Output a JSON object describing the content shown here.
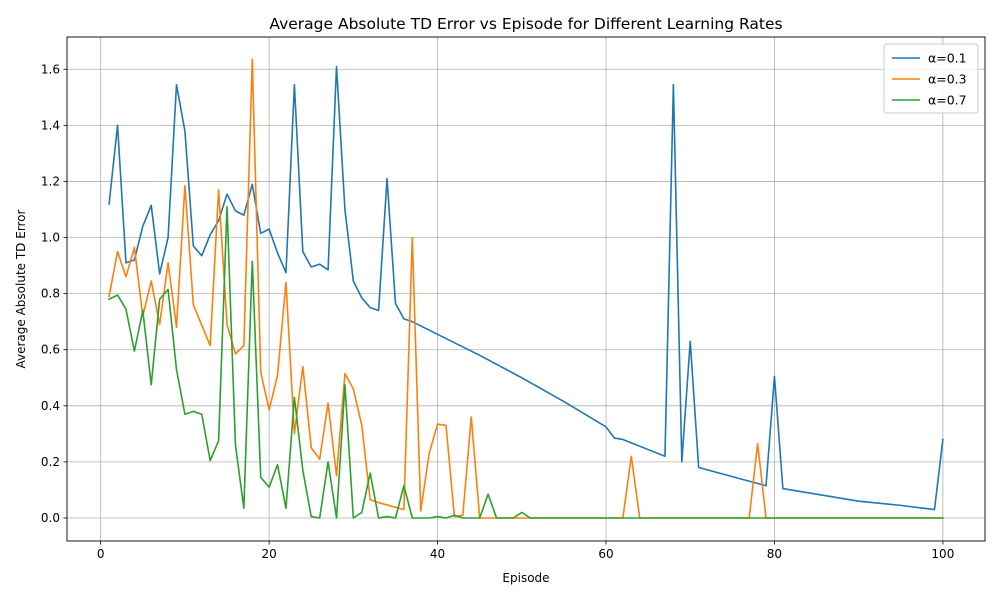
{
  "chart_data": {
    "type": "line",
    "title": "Average Absolute TD Error vs Episode for Different Learning Rates",
    "xlabel": "Episode",
    "ylabel": "Average Absolute TD Error",
    "xlim": [
      -4,
      105
    ],
    "ylim": [
      -0.082,
      1.715
    ],
    "xticks": [
      0,
      20,
      40,
      60,
      80,
      100
    ],
    "yticks": [
      0.0,
      0.2,
      0.4,
      0.6,
      0.8,
      1.0,
      1.2,
      1.4,
      1.6
    ],
    "grid": true,
    "legend_position": "top-right",
    "series": [
      {
        "name": "α=0.1",
        "color": "#1f77b4",
        "points": [
          [
            1,
            1.12
          ],
          [
            2,
            1.4
          ],
          [
            3,
            0.91
          ],
          [
            4,
            0.92
          ],
          [
            5,
            1.04
          ],
          [
            6,
            1.115
          ],
          [
            7,
            0.87
          ],
          [
            8,
            1.0
          ],
          [
            9,
            1.545
          ],
          [
            10,
            1.38
          ],
          [
            11,
            0.97
          ],
          [
            12,
            0.935
          ],
          [
            13,
            1.01
          ],
          [
            14,
            1.06
          ],
          [
            15,
            1.155
          ],
          [
            16,
            1.095
          ],
          [
            17,
            1.08
          ],
          [
            18,
            1.19
          ],
          [
            19,
            1.015
          ],
          [
            20,
            1.03
          ],
          [
            21,
            0.945
          ],
          [
            22,
            0.875
          ],
          [
            23,
            1.545
          ],
          [
            24,
            0.95
          ],
          [
            25,
            0.895
          ],
          [
            26,
            0.905
          ],
          [
            27,
            0.885
          ],
          [
            28,
            1.61
          ],
          [
            29,
            1.1
          ],
          [
            30,
            0.845
          ],
          [
            31,
            0.785
          ],
          [
            32,
            0.75
          ],
          [
            33,
            0.74
          ],
          [
            34,
            1.21
          ],
          [
            35,
            0.765
          ],
          [
            36,
            0.71
          ],
          [
            37,
            0.7
          ],
          [
            40,
            0.655
          ],
          [
            45,
            0.58
          ],
          [
            50,
            0.5
          ],
          [
            55,
            0.415
          ],
          [
            60,
            0.325
          ],
          [
            61,
            0.285
          ],
          [
            62,
            0.28
          ],
          [
            67,
            0.22
          ],
          [
            68,
            1.545
          ],
          [
            69,
            0.2
          ],
          [
            70,
            0.63
          ],
          [
            71,
            0.18
          ],
          [
            79,
            0.115
          ],
          [
            80,
            0.505
          ],
          [
            81,
            0.105
          ],
          [
            85,
            0.085
          ],
          [
            90,
            0.06
          ],
          [
            95,
            0.045
          ],
          [
            99,
            0.03
          ],
          [
            100,
            0.28
          ]
        ]
      },
      {
        "name": "α=0.3",
        "color": "#ff7f0e",
        "points": [
          [
            1,
            0.79
          ],
          [
            2,
            0.95
          ],
          [
            3,
            0.86
          ],
          [
            4,
            0.965
          ],
          [
            5,
            0.72
          ],
          [
            6,
            0.845
          ],
          [
            7,
            0.69
          ],
          [
            8,
            0.91
          ],
          [
            9,
            0.68
          ],
          [
            10,
            1.185
          ],
          [
            11,
            0.76
          ],
          [
            13,
            0.615
          ],
          [
            14,
            1.17
          ],
          [
            15,
            0.69
          ],
          [
            16,
            0.585
          ],
          [
            17,
            0.615
          ],
          [
            18,
            1.635
          ],
          [
            19,
            0.52
          ],
          [
            20,
            0.385
          ],
          [
            21,
            0.51
          ],
          [
            22,
            0.84
          ],
          [
            23,
            0.3
          ],
          [
            24,
            0.54
          ],
          [
            25,
            0.25
          ],
          [
            26,
            0.21
          ],
          [
            27,
            0.41
          ],
          [
            28,
            0.15
          ],
          [
            29,
            0.515
          ],
          [
            30,
            0.46
          ],
          [
            31,
            0.33
          ],
          [
            32,
            0.065
          ],
          [
            33,
            0.055
          ],
          [
            36,
            0.03
          ],
          [
            37,
            1.0
          ],
          [
            38,
            0.025
          ],
          [
            39,
            0.23
          ],
          [
            40,
            0.335
          ],
          [
            41,
            0.33
          ],
          [
            42,
            0.005
          ],
          [
            43,
            0.01
          ],
          [
            44,
            0.36
          ],
          [
            45,
            0.0
          ],
          [
            50,
            0.0
          ],
          [
            62,
            0.0
          ],
          [
            63,
            0.22
          ],
          [
            64,
            0.0
          ],
          [
            77,
            0.0
          ],
          [
            78,
            0.265
          ],
          [
            79,
            0.0
          ],
          [
            100,
            0.0
          ]
        ]
      },
      {
        "name": "α=0.7",
        "color": "#2ca02c",
        "points": [
          [
            1,
            0.78
          ],
          [
            2,
            0.795
          ],
          [
            3,
            0.745
          ],
          [
            4,
            0.595
          ],
          [
            5,
            0.74
          ],
          [
            6,
            0.475
          ],
          [
            7,
            0.78
          ],
          [
            8,
            0.815
          ],
          [
            9,
            0.53
          ],
          [
            10,
            0.37
          ],
          [
            11,
            0.38
          ],
          [
            12,
            0.37
          ],
          [
            13,
            0.205
          ],
          [
            14,
            0.275
          ],
          [
            15,
            1.11
          ],
          [
            16,
            0.26
          ],
          [
            17,
            0.035
          ],
          [
            18,
            0.915
          ],
          [
            19,
            0.145
          ],
          [
            20,
            0.11
          ],
          [
            21,
            0.19
          ],
          [
            22,
            0.035
          ],
          [
            23,
            0.43
          ],
          [
            24,
            0.17
          ],
          [
            25,
            0.005
          ],
          [
            26,
            0.0
          ],
          [
            27,
            0.2
          ],
          [
            28,
            0.0
          ],
          [
            29,
            0.475
          ],
          [
            30,
            0.0
          ],
          [
            31,
            0.02
          ],
          [
            32,
            0.16
          ],
          [
            33,
            0.0
          ],
          [
            34,
            0.005
          ],
          [
            35,
            0.0
          ],
          [
            36,
            0.115
          ],
          [
            37,
            0.0
          ],
          [
            39,
            0.0
          ],
          [
            40,
            0.005
          ],
          [
            41,
            0.0
          ],
          [
            42,
            0.01
          ],
          [
            43,
            0.0
          ],
          [
            45,
            0.0
          ],
          [
            46,
            0.085
          ],
          [
            47,
            0.0
          ],
          [
            49,
            0.0
          ],
          [
            50,
            0.02
          ],
          [
            51,
            0.0
          ],
          [
            100,
            0.0
          ]
        ]
      }
    ]
  }
}
